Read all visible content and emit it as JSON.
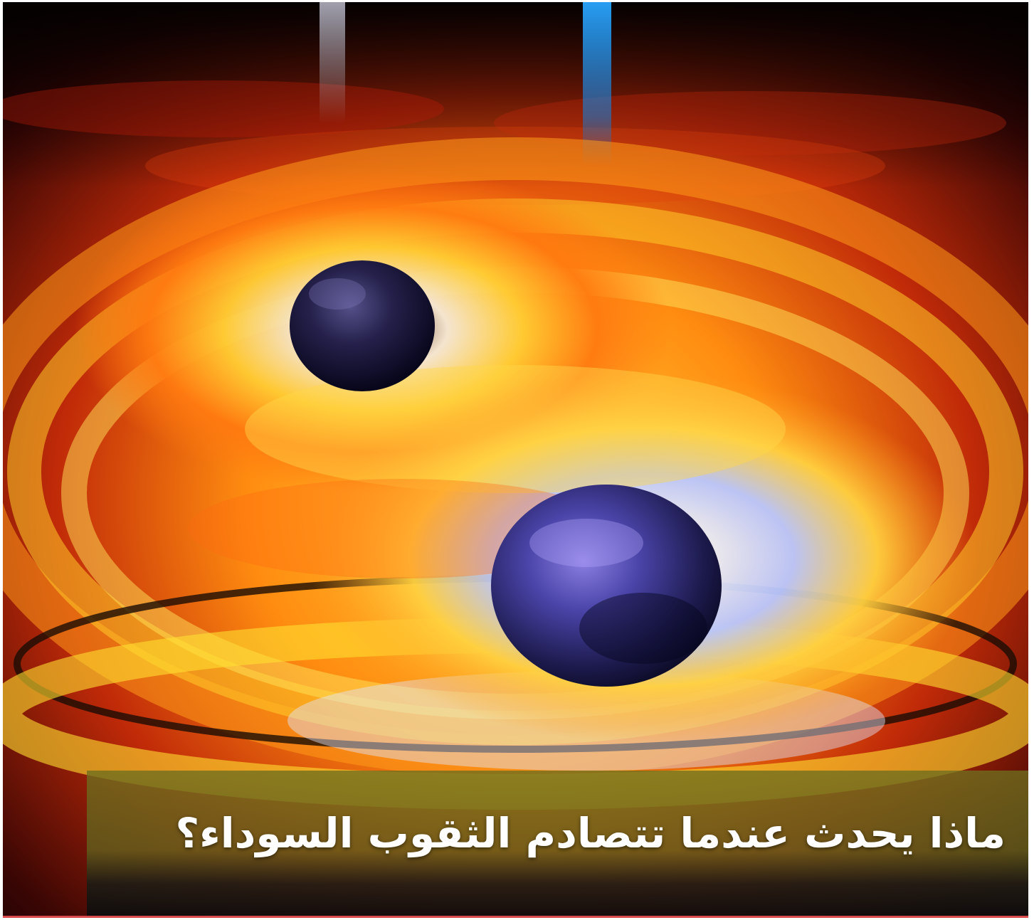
{
  "image": {
    "subject": "black-holes-collision-illustration",
    "palette": {
      "accent_orange": "#ff8a00",
      "accent_yellow": "#ffe21a",
      "sphere_blue": "#3b3a8c",
      "jet_blue": "#2aa6ff",
      "background": "#0a0202",
      "bottom_accent": "#d94a4a"
    }
  },
  "caption": {
    "title": "ماذا يحدث عندما تتصادم الثقوب السوداء؟",
    "bar_color": "#6e6e1e"
  }
}
